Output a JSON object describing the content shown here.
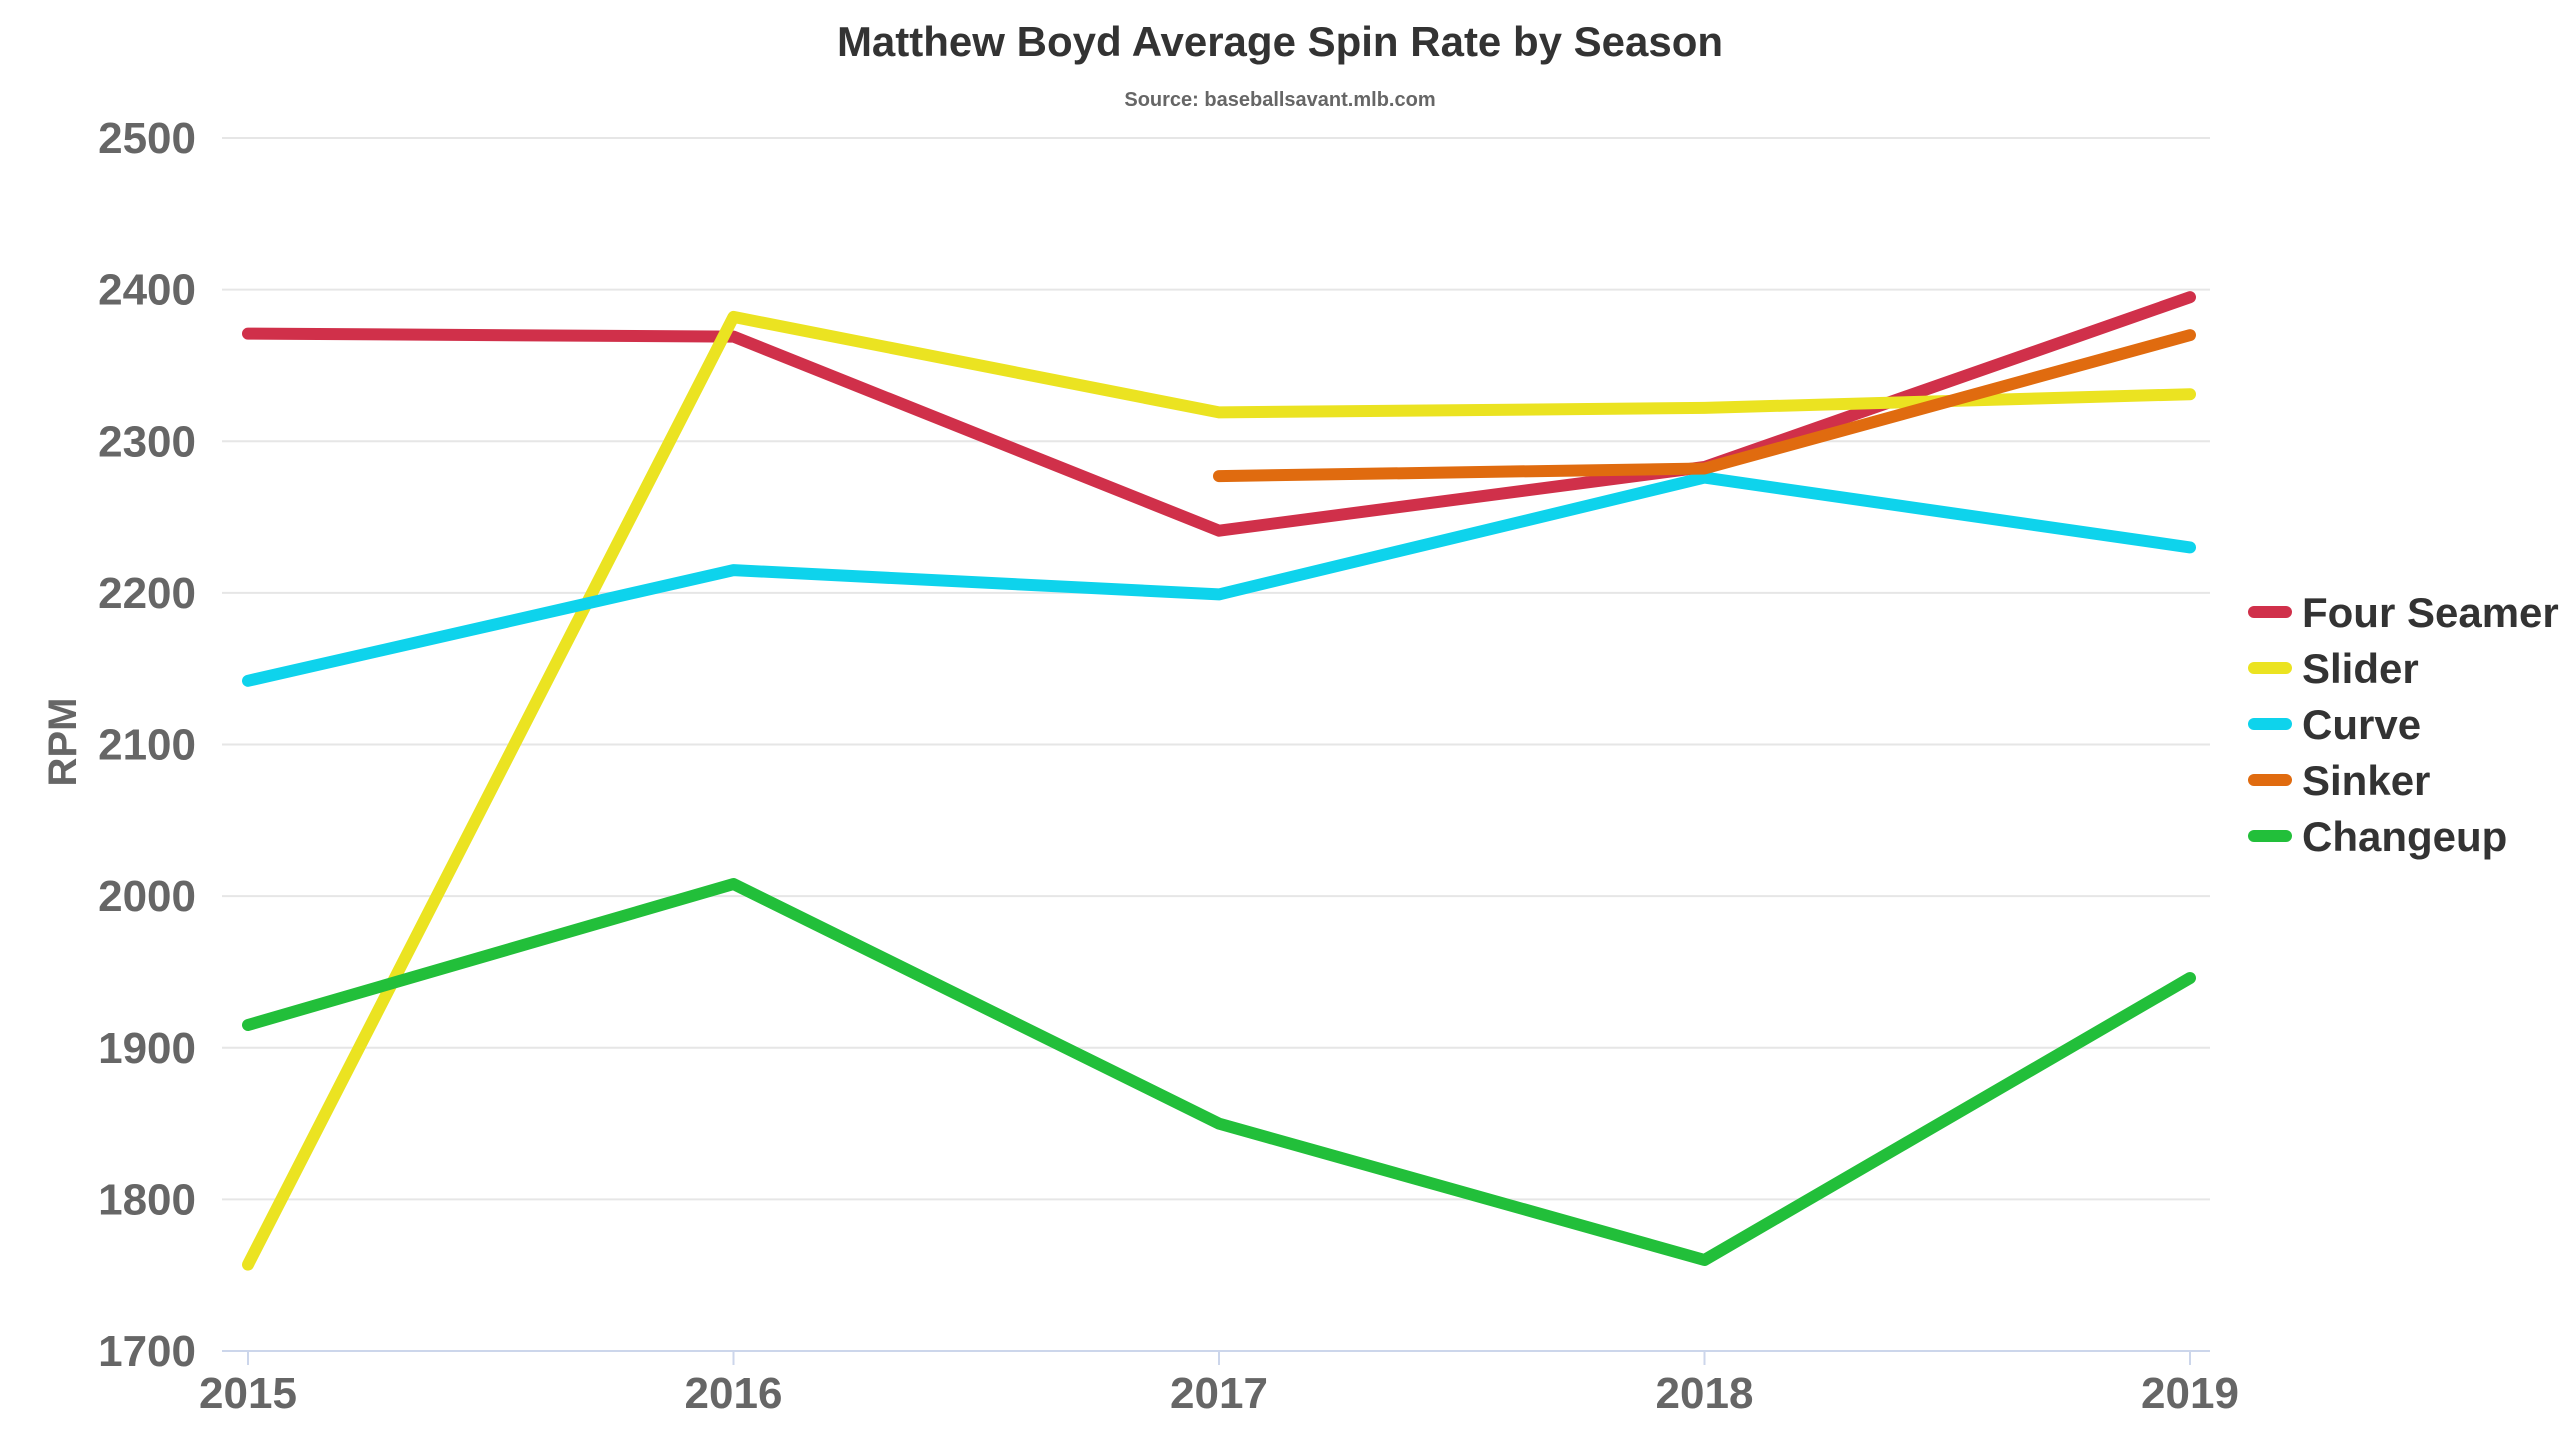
{
  "chart_data": {
    "type": "line",
    "title": "Matthew Boyd Average Spin Rate by Season",
    "subtitle": "Source: baseballsavant.mlb.com",
    "xlabel": "",
    "ylabel": "RPM",
    "x": [
      "2015",
      "2016",
      "2017",
      "2018",
      "2019"
    ],
    "ylim": [
      1700,
      2500
    ],
    "yticks": [
      1700,
      1800,
      1900,
      2000,
      2100,
      2200,
      2300,
      2400,
      2500
    ],
    "grid": true,
    "legend_position": "right",
    "series": [
      {
        "name": "Four Seamer",
        "color": "#d0304a",
        "values": [
          2371,
          2369,
          2241,
          2283,
          2395
        ]
      },
      {
        "name": "Slider",
        "color": "#ebe321",
        "values": [
          1757,
          2382,
          2319,
          2322,
          2331
        ]
      },
      {
        "name": "Curve",
        "color": "#0ed3ec",
        "values": [
          2142,
          2215,
          2199,
          2276,
          2230
        ]
      },
      {
        "name": "Sinker",
        "color": "#e06b0f",
        "values": [
          null,
          null,
          2277,
          2282,
          2370
        ]
      },
      {
        "name": "Changeup",
        "color": "#22bf3a",
        "values": [
          1915,
          2008,
          1850,
          1760,
          1946
        ]
      }
    ]
  }
}
